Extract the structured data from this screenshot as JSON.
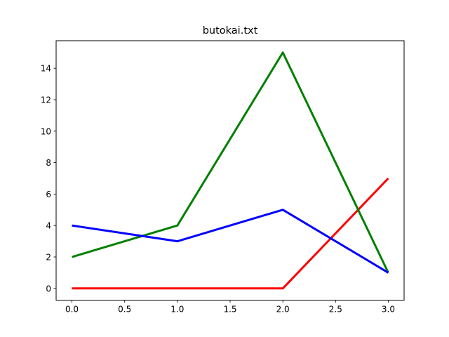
{
  "chart_data": {
    "type": "line",
    "title": "butokai.txt",
    "xlabel": "",
    "ylabel": "",
    "x": [
      0,
      1,
      2,
      3
    ],
    "xlim": [
      -0.15,
      3.15
    ],
    "ylim": [
      -0.75,
      15.75
    ],
    "xticks": [
      0.0,
      0.5,
      1.0,
      1.5,
      2.0,
      2.5,
      3.0
    ],
    "xtick_labels": [
      "0.0",
      "0.5",
      "1.0",
      "1.5",
      "2.0",
      "2.5",
      "3.0"
    ],
    "yticks": [
      0,
      2,
      4,
      6,
      8,
      10,
      12,
      14
    ],
    "ytick_labels": [
      "0",
      "2",
      "4",
      "6",
      "8",
      "10",
      "12",
      "14"
    ],
    "grid": false,
    "legend": "none",
    "series": [
      {
        "values": [
          0,
          0,
          0,
          7
        ],
        "color": "#ff0000"
      },
      {
        "values": [
          2,
          4,
          15,
          1
        ],
        "color": "#008000"
      },
      {
        "values": [
          4,
          3,
          5,
          1
        ],
        "color": "#0000ff"
      }
    ]
  }
}
